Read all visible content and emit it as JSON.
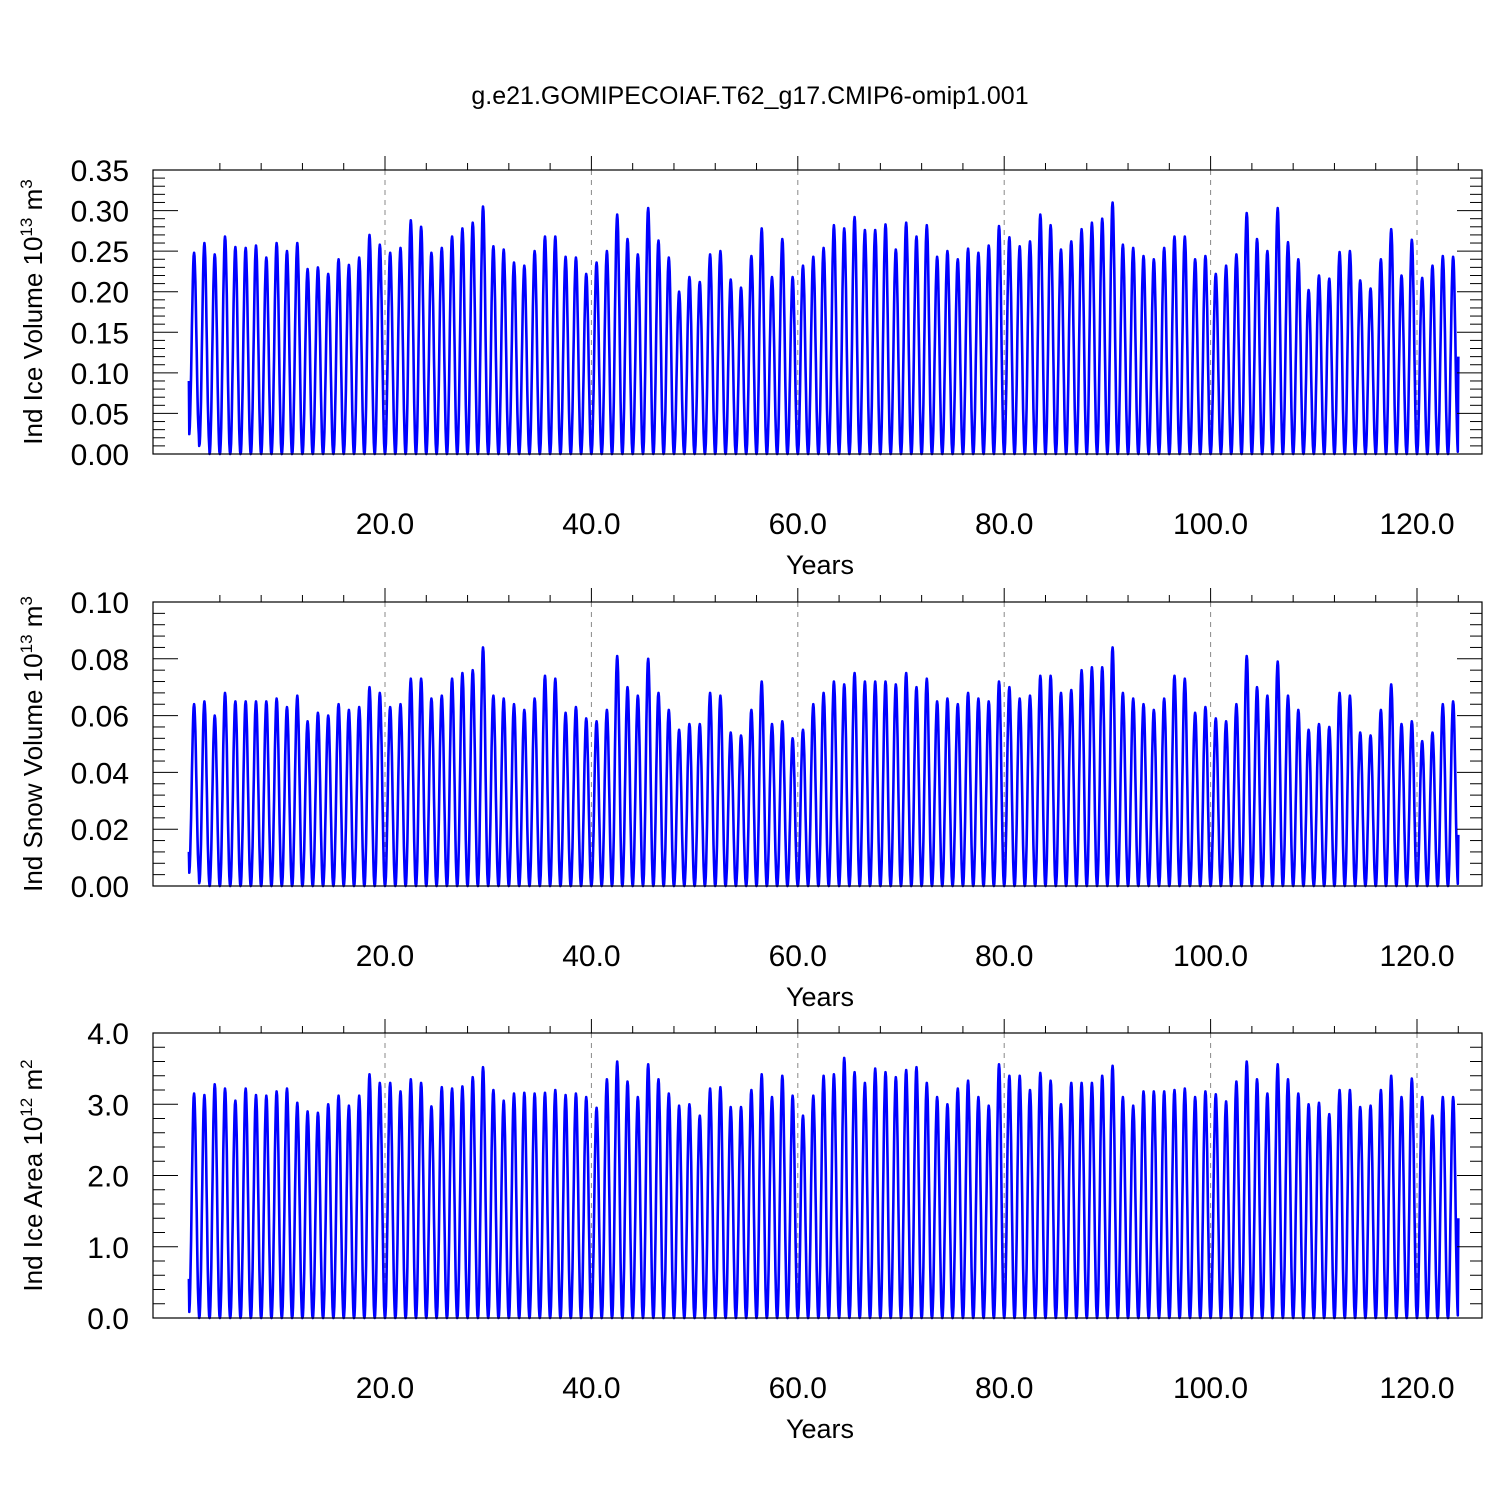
{
  "title": "g.e21.GOMIPECOIAF.T62_g17.CMIP6-omip1.001",
  "colors": {
    "series": "#0000ff",
    "axis": "#000000",
    "grid": "#888888"
  },
  "chart_data": [
    {
      "type": "line",
      "ylabel_main": "Ind Ice Volume 10",
      "ylabel_exp": "13",
      "ylabel_unit": " m",
      "ylabel_unit_exp": "3",
      "xlabel": "Years",
      "xlim": [
        0,
        124
      ],
      "ylim": [
        0,
        0.35
      ],
      "xticks": [
        20,
        40,
        60,
        80,
        100,
        120
      ],
      "xtick_labels": [
        "20.0",
        "40.0",
        "60.0",
        "80.0",
        "100.0",
        "120.0"
      ],
      "yticks": [
        0,
        0.05,
        0.1,
        0.15,
        0.2,
        0.25,
        0.3,
        0.35
      ],
      "ytick_labels": [
        "0.00",
        "0.05",
        "0.10",
        "0.15",
        "0.20",
        "0.25",
        "0.30",
        "0.35"
      ],
      "grid": "vertical dashed at major x ticks",
      "series": [
        {
          "start": 0.09,
          "end": 0.12,
          "annual_minimum": 0.0,
          "annual_peaks": [
            0.248,
            0.26,
            0.246,
            0.268,
            0.255,
            0.254,
            0.257,
            0.242,
            0.26,
            0.25,
            0.26,
            0.228,
            0.23,
            0.222,
            0.24,
            0.233,
            0.242,
            0.27,
            0.258,
            0.248,
            0.254,
            0.288,
            0.28,
            0.248,
            0.254,
            0.268,
            0.278,
            0.285,
            0.305,
            0.256,
            0.252,
            0.236,
            0.232,
            0.25,
            0.268,
            0.268,
            0.243,
            0.242,
            0.222,
            0.236,
            0.25,
            0.295,
            0.265,
            0.246,
            0.303,
            0.263,
            0.242,
            0.2,
            0.218,
            0.212,
            0.246,
            0.25,
            0.215,
            0.205,
            0.244,
            0.278,
            0.218,
            0.265,
            0.218,
            0.232,
            0.243,
            0.254,
            0.282,
            0.278,
            0.292,
            0.276,
            0.276,
            0.283,
            0.252,
            0.285,
            0.268,
            0.282,
            0.243,
            0.25,
            0.24,
            0.253,
            0.248,
            0.257,
            0.281,
            0.267,
            0.256,
            0.262,
            0.295,
            0.282,
            0.252,
            0.262,
            0.277,
            0.285,
            0.29,
            0.31,
            0.258,
            0.254,
            0.244,
            0.24,
            0.254,
            0.268,
            0.268,
            0.24,
            0.244,
            0.222,
            0.232,
            0.246,
            0.297,
            0.265,
            0.25,
            0.303,
            0.261,
            0.24,
            0.202,
            0.22,
            0.216,
            0.249,
            0.25,
            0.214,
            0.204,
            0.24,
            0.277,
            0.22,
            0.264,
            0.217,
            0.232,
            0.244,
            0.243
          ],
          "trough_floor_first_years": [
            0.022,
            0.01
          ]
        }
      ]
    },
    {
      "type": "line",
      "ylabel_main": "Ind Snow Volume 10",
      "ylabel_exp": "13",
      "ylabel_unit": " m",
      "ylabel_unit_exp": "3",
      "xlabel": "Years",
      "xlim": [
        0,
        124
      ],
      "ylim": [
        0,
        0.1
      ],
      "xticks": [
        20,
        40,
        60,
        80,
        100,
        120
      ],
      "xtick_labels": [
        "20.0",
        "40.0",
        "60.0",
        "80.0",
        "100.0",
        "120.0"
      ],
      "yticks": [
        0,
        0.02,
        0.04,
        0.06,
        0.08,
        0.1
      ],
      "ytick_labels": [
        "0.00",
        "0.02",
        "0.04",
        "0.06",
        "0.08",
        "0.10"
      ],
      "grid": "vertical dashed at major x ticks",
      "series": [
        {
          "start": 0.012,
          "end": 0.018,
          "annual_minimum": 0.0,
          "annual_peaks": [
            0.064,
            0.065,
            0.06,
            0.068,
            0.065,
            0.065,
            0.065,
            0.065,
            0.066,
            0.063,
            0.067,
            0.058,
            0.061,
            0.06,
            0.064,
            0.062,
            0.063,
            0.07,
            0.068,
            0.063,
            0.064,
            0.073,
            0.073,
            0.066,
            0.067,
            0.073,
            0.075,
            0.076,
            0.084,
            0.067,
            0.066,
            0.064,
            0.062,
            0.066,
            0.074,
            0.073,
            0.061,
            0.063,
            0.059,
            0.058,
            0.062,
            0.081,
            0.07,
            0.067,
            0.08,
            0.068,
            0.062,
            0.055,
            0.057,
            0.057,
            0.068,
            0.067,
            0.054,
            0.053,
            0.062,
            0.072,
            0.057,
            0.058,
            0.052,
            0.055,
            0.064,
            0.068,
            0.072,
            0.071,
            0.075,
            0.072,
            0.072,
            0.072,
            0.071,
            0.075,
            0.07,
            0.073,
            0.065,
            0.066,
            0.064,
            0.068,
            0.066,
            0.065,
            0.072,
            0.07,
            0.066,
            0.067,
            0.074,
            0.074,
            0.068,
            0.069,
            0.076,
            0.077,
            0.077,
            0.084,
            0.068,
            0.066,
            0.064,
            0.062,
            0.066,
            0.074,
            0.073,
            0.061,
            0.063,
            0.059,
            0.058,
            0.064,
            0.081,
            0.07,
            0.067,
            0.079,
            0.067,
            0.062,
            0.055,
            0.057,
            0.056,
            0.068,
            0.067,
            0.054,
            0.053,
            0.062,
            0.071,
            0.057,
            0.058,
            0.051,
            0.054,
            0.064,
            0.065
          ],
          "trough_floor_first_years": [
            0.004,
            0.001
          ]
        }
      ]
    },
    {
      "type": "line",
      "ylabel_main": "Ind Ice Area 10",
      "ylabel_exp": "12",
      "ylabel_unit": " m",
      "ylabel_unit_exp": "2",
      "xlabel": "Years",
      "xlim": [
        0,
        124
      ],
      "ylim": [
        0,
        4.0
      ],
      "xticks": [
        20,
        40,
        60,
        80,
        100,
        120
      ],
      "xtick_labels": [
        "20.0",
        "40.0",
        "60.0",
        "80.0",
        "100.0",
        "120.0"
      ],
      "yticks": [
        0,
        1,
        2,
        3,
        4
      ],
      "ytick_labels": [
        "0.0",
        "1.0",
        "2.0",
        "3.0",
        "4.0"
      ],
      "grid": "vertical dashed at major x ticks",
      "series": [
        {
          "start": 0.55,
          "end": 1.4,
          "annual_minimum": 0.0,
          "annual_peaks": [
            3.15,
            3.13,
            3.28,
            3.22,
            3.05,
            3.22,
            3.13,
            3.12,
            3.18,
            3.22,
            3.02,
            2.9,
            2.88,
            3.0,
            3.12,
            2.98,
            3.12,
            3.42,
            3.3,
            3.3,
            3.18,
            3.35,
            3.3,
            2.97,
            3.24,
            3.22,
            3.25,
            3.38,
            3.52,
            3.2,
            3.05,
            3.15,
            3.16,
            3.15,
            3.16,
            3.2,
            3.13,
            3.15,
            3.1,
            2.95,
            3.35,
            3.6,
            3.32,
            3.1,
            3.56,
            3.35,
            3.15,
            2.98,
            3.0,
            2.84,
            3.22,
            3.24,
            2.96,
            2.96,
            3.2,
            3.42,
            3.1,
            3.4,
            3.12,
            2.84,
            3.12,
            3.4,
            3.42,
            3.65,
            3.45,
            3.3,
            3.5,
            3.45,
            3.38,
            3.48,
            3.52,
            3.3,
            3.1,
            3.0,
            3.22,
            3.33,
            3.1,
            2.98,
            3.56,
            3.4,
            3.4,
            3.2,
            3.44,
            3.33,
            3.0,
            3.3,
            3.3,
            3.3,
            3.4,
            3.54,
            3.1,
            2.98,
            3.18,
            3.18,
            3.18,
            3.2,
            3.22,
            3.1,
            3.18,
            3.14,
            3.04,
            3.32,
            3.6,
            3.35,
            3.15,
            3.56,
            3.35,
            3.15,
            3.0,
            3.02,
            2.86,
            3.2,
            3.2,
            2.96,
            2.98,
            3.2,
            3.4,
            3.1,
            3.36,
            3.1,
            2.84,
            3.1,
            3.1
          ],
          "trough_floor_first_years": [
            0.05,
            0.0
          ]
        }
      ]
    }
  ]
}
